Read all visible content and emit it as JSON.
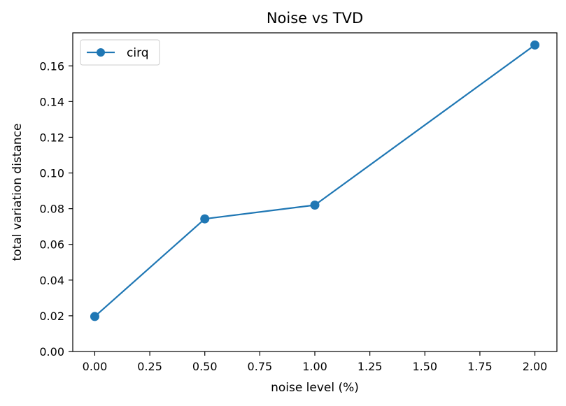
{
  "chart_data": {
    "type": "line",
    "title": "Noise vs TVD",
    "xlabel": "noise level (%)",
    "ylabel": "total variation distance",
    "xlim": [
      -0.1,
      2.1
    ],
    "ylim": [
      0.0,
      0.1785
    ],
    "x_ticks": [
      0.0,
      0.25,
      0.5,
      0.75,
      1.0,
      1.25,
      1.5,
      1.75,
      2.0
    ],
    "x_tick_labels": [
      "0.00",
      "0.25",
      "0.50",
      "0.75",
      "1.00",
      "1.25",
      "1.50",
      "1.75",
      "2.00"
    ],
    "y_ticks": [
      0.0,
      0.02,
      0.04,
      0.06,
      0.08,
      0.1,
      0.12,
      0.14,
      0.16
    ],
    "y_tick_labels": [
      "0.00",
      "0.02",
      "0.04",
      "0.06",
      "0.08",
      "0.10",
      "0.12",
      "0.14",
      "0.16"
    ],
    "grid": false,
    "legend_position": "top-left",
    "series": [
      {
        "name": "cirq",
        "color": "#1f77b4",
        "marker": "circle",
        "x": [
          0.0,
          0.5,
          1.0,
          2.0
        ],
        "y": [
          0.0196,
          0.0743,
          0.082,
          0.1717
        ]
      }
    ]
  }
}
